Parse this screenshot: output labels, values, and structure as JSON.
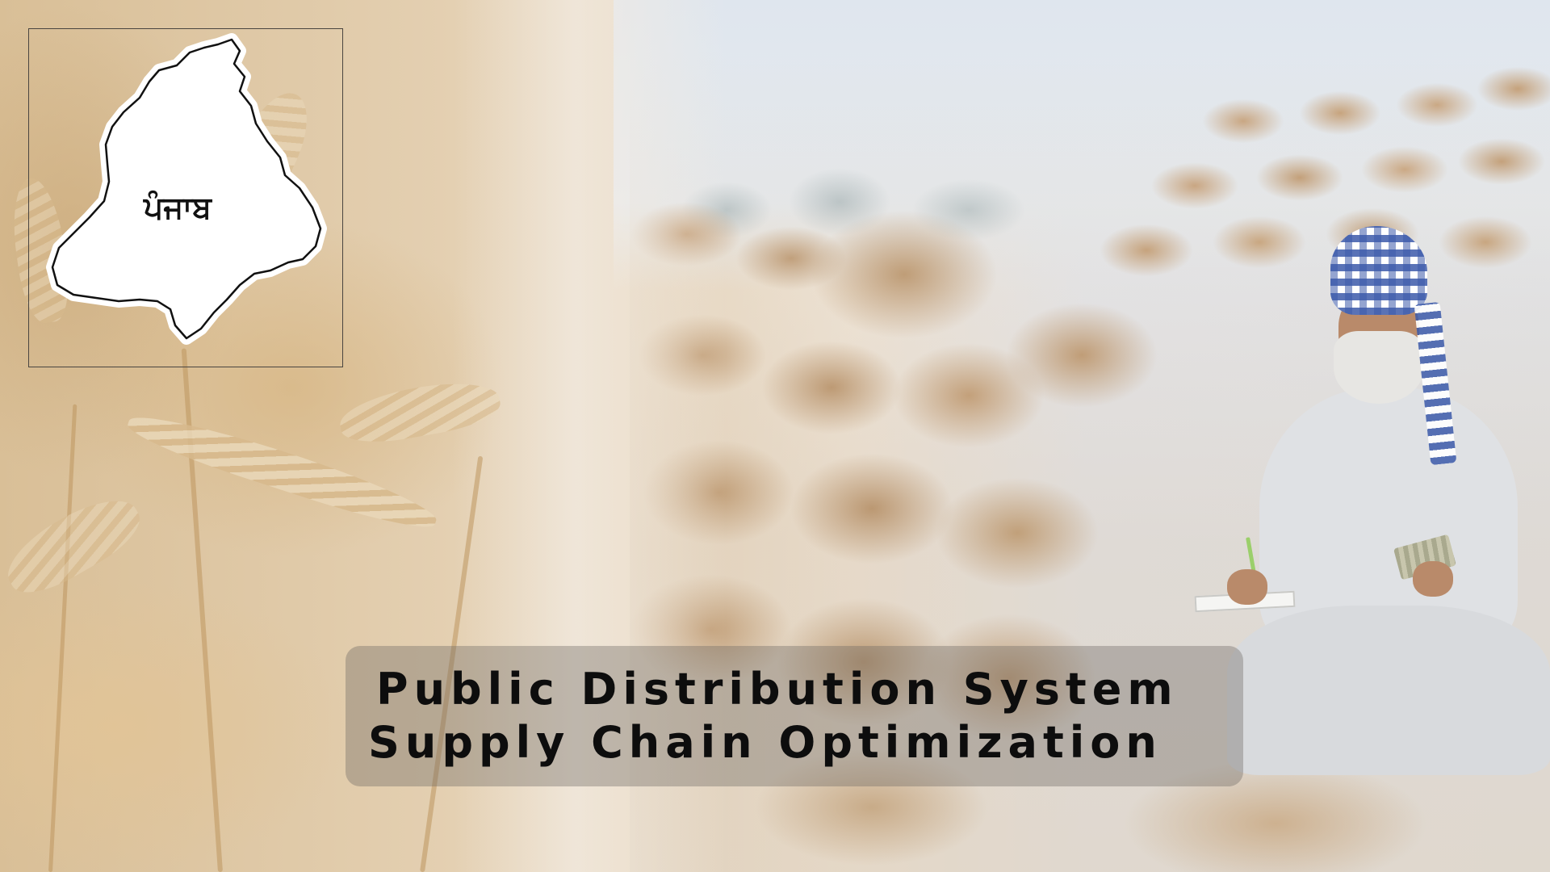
{
  "map": {
    "label": "ਪੰਜਾਬ",
    "region_name": "Punjab"
  },
  "title": {
    "line1": "Public Distribution System",
    "line2": "Supply Chain Optimization"
  },
  "colors": {
    "banner_bg": "#6e6964",
    "title_text": "#0d0d0d",
    "map_fill": "#ffffff",
    "map_outline": "#111111",
    "turban_check": "#3c5aaa"
  }
}
